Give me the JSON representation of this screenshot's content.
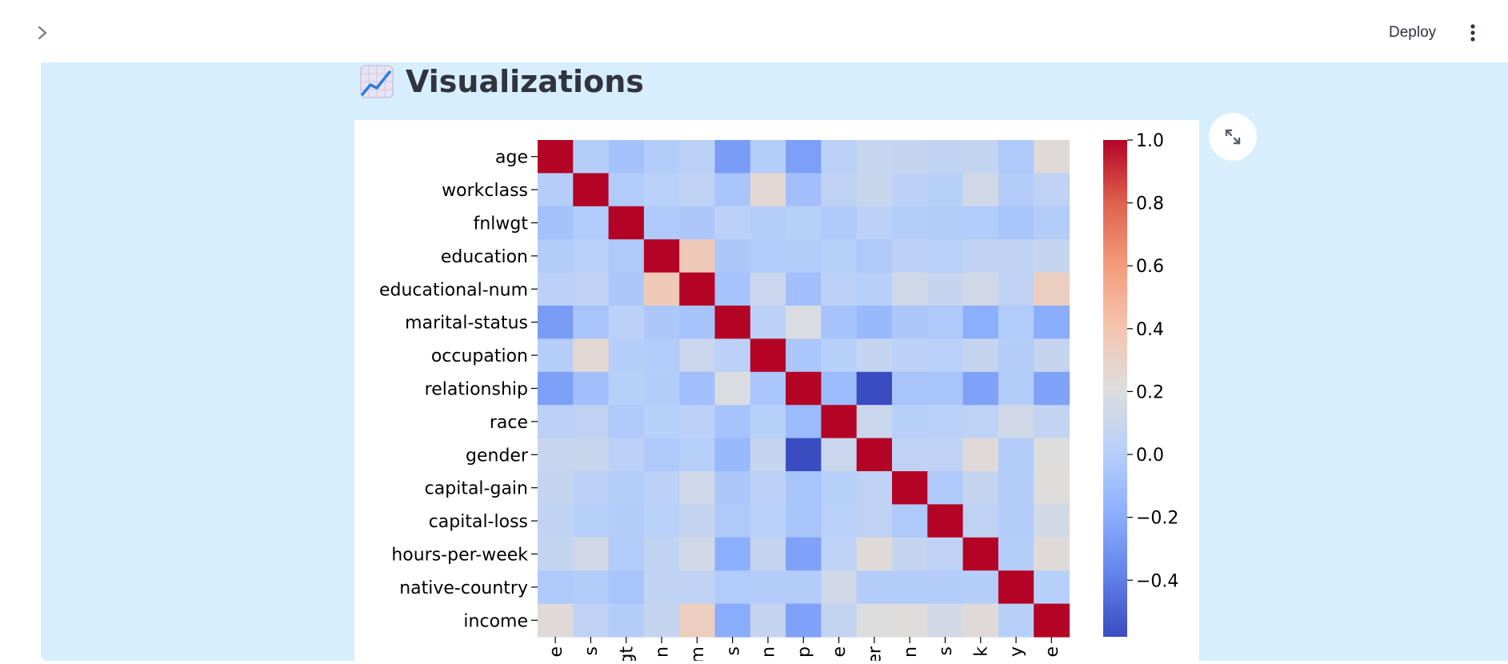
{
  "header": {
    "deploy_label": "Deploy",
    "sidebar_toggle_icon": "chevron-right-icon",
    "menu_icon": "vertical-dots-icon"
  },
  "section": {
    "emoji_icon": "chart-increasing-icon",
    "title": "Visualizations"
  },
  "expand_icon": "fullscreen-icon",
  "chart_data": {
    "type": "heatmap",
    "labels": [
      "age",
      "workclass",
      "fnlwgt",
      "education",
      "educational-num",
      "marital-status",
      "occupation",
      "relationship",
      "race",
      "gender",
      "capital-gain",
      "capital-loss",
      "hours-per-week",
      "native-country",
      "income"
    ],
    "x_tick_labels_visible": [
      "e",
      "s",
      "gt",
      "n",
      "m",
      "s",
      "n",
      "p",
      "e",
      "er",
      "n",
      "s",
      "k",
      "y",
      "e"
    ],
    "values": [
      [
        1.0,
        0.0,
        -0.08,
        -0.01,
        0.03,
        -0.27,
        0.0,
        -0.26,
        0.03,
        0.09,
        0.08,
        0.06,
        0.07,
        -0.03,
        0.23
      ],
      [
        0.0,
        1.0,
        -0.02,
        0.02,
        0.05,
        -0.06,
        0.26,
        -0.09,
        0.05,
        0.1,
        0.03,
        0.01,
        0.14,
        -0.01,
        0.05
      ],
      [
        -0.08,
        -0.02,
        1.0,
        -0.03,
        -0.04,
        0.03,
        0.0,
        0.01,
        -0.03,
        0.03,
        0.0,
        -0.01,
        -0.02,
        -0.06,
        -0.01
      ],
      [
        -0.01,
        0.02,
        -0.03,
        1.0,
        0.36,
        -0.04,
        -0.02,
        -0.01,
        0.01,
        -0.03,
        0.03,
        0.02,
        0.06,
        0.06,
        0.08
      ],
      [
        0.03,
        0.05,
        -0.04,
        0.36,
        1.0,
        -0.07,
        0.11,
        -0.09,
        0.03,
        0.01,
        0.13,
        0.08,
        0.14,
        0.05,
        0.33
      ],
      [
        -0.27,
        -0.06,
        0.03,
        -0.04,
        -0.07,
        1.0,
        0.03,
        0.19,
        -0.07,
        -0.13,
        -0.04,
        -0.03,
        -0.19,
        -0.02,
        -0.2
      ],
      [
        0.0,
        0.26,
        0.0,
        -0.02,
        0.11,
        0.03,
        1.0,
        -0.05,
        0.01,
        0.08,
        0.03,
        0.02,
        0.08,
        -0.01,
        0.08
      ],
      [
        -0.26,
        -0.09,
        0.01,
        -0.01,
        -0.09,
        0.19,
        -0.05,
        1.0,
        -0.12,
        -0.58,
        -0.06,
        -0.06,
        -0.25,
        -0.01,
        -0.25
      ],
      [
        0.03,
        0.05,
        -0.03,
        0.01,
        0.03,
        -0.07,
        0.01,
        -0.12,
        1.0,
        0.11,
        0.01,
        0.02,
        0.04,
        0.14,
        0.07
      ],
      [
        0.09,
        0.1,
        0.03,
        -0.03,
        0.01,
        -0.13,
        0.08,
        -0.58,
        0.11,
        1.0,
        0.05,
        0.05,
        0.23,
        -0.01,
        0.21
      ],
      [
        0.08,
        0.03,
        0.0,
        0.03,
        0.13,
        -0.04,
        0.03,
        -0.06,
        0.01,
        0.05,
        1.0,
        -0.03,
        0.08,
        -0.01,
        0.22
      ],
      [
        0.06,
        0.01,
        -0.01,
        0.02,
        0.08,
        -0.03,
        0.02,
        -0.06,
        0.02,
        0.05,
        -0.03,
        1.0,
        0.05,
        -0.01,
        0.15
      ],
      [
        0.07,
        0.14,
        -0.02,
        0.06,
        0.14,
        -0.19,
        0.08,
        -0.25,
        0.04,
        0.23,
        0.08,
        0.05,
        1.0,
        0.0,
        0.23
      ],
      [
        -0.03,
        -0.01,
        -0.06,
        0.06,
        0.05,
        -0.02,
        -0.01,
        -0.01,
        0.14,
        -0.01,
        -0.01,
        -0.01,
        0.0,
        1.0,
        0.01
      ],
      [
        0.23,
        0.05,
        -0.01,
        0.08,
        0.33,
        -0.2,
        0.08,
        -0.25,
        0.07,
        0.21,
        0.22,
        0.15,
        0.23,
        0.01,
        1.0
      ]
    ],
    "colormap": "coolwarm",
    "vmin": -0.58,
    "vmax": 1.0,
    "colorbar_ticks": [
      "1.0",
      "0.8",
      "0.6",
      "0.4",
      "0.2",
      "0.0",
      "−0.2",
      "−0.4"
    ],
    "colorbar_tick_values": [
      1.0,
      0.8,
      0.6,
      0.4,
      0.2,
      0.0,
      -0.2,
      -0.4
    ]
  }
}
